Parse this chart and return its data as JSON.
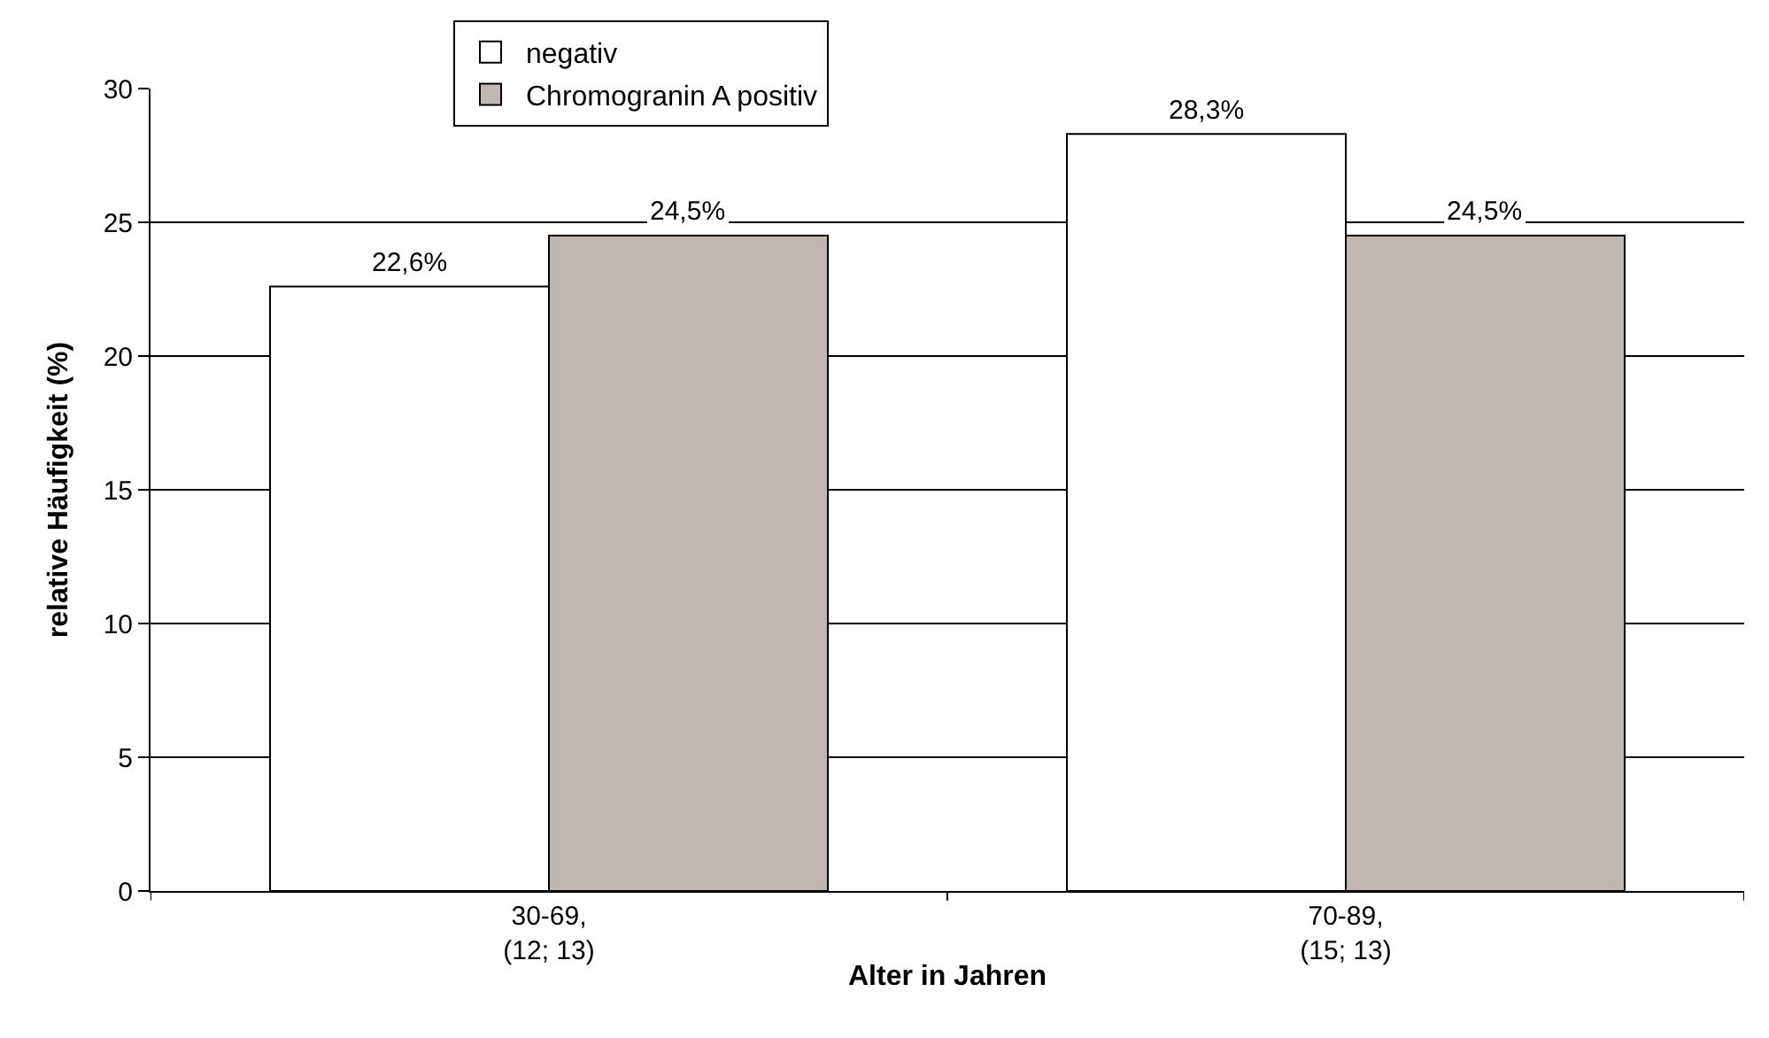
{
  "chart_data": {
    "type": "bar",
    "xlabel": "Alter in Jahren",
    "ylabel": "relative Häufigkeit (%)",
    "categories": [
      "30-69,\n(12; 13)",
      "70-89,\n(15; 13)"
    ],
    "series": [
      {
        "name": "negativ",
        "color": "#ffffff",
        "values": [
          22.6,
          28.3
        ],
        "value_labels": [
          "22,6%",
          "28,3%"
        ]
      },
      {
        "name": "Chromogranin A positiv",
        "color": "#c0b7b3",
        "values": [
          24.5,
          24.5
        ],
        "value_labels": [
          "24,5%",
          "24,5%"
        ]
      }
    ],
    "ylim": [
      0,
      30
    ],
    "yticks": [
      0,
      5,
      10,
      15,
      20,
      25,
      30
    ],
    "grid": "y",
    "legend": "top"
  }
}
